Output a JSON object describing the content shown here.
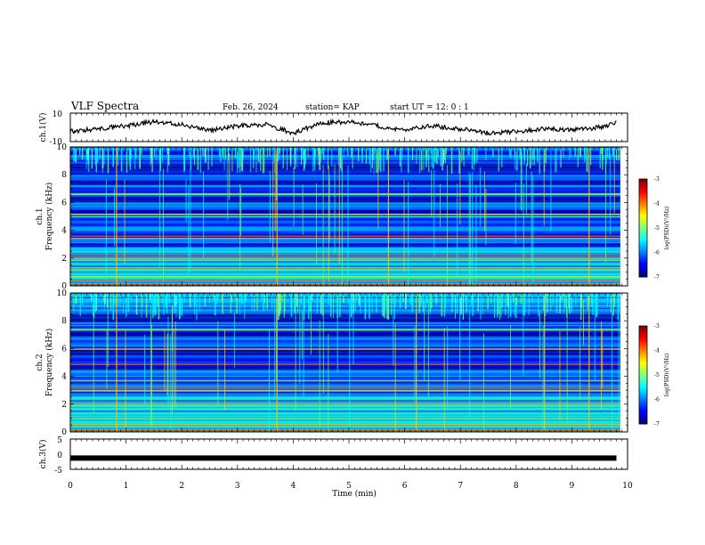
{
  "header": {
    "title": "VLF Spectra",
    "date": "Feb. 26, 2024",
    "station": "station= KAP",
    "start_ut": "start  UT  =   12: 0   : 1"
  },
  "chart_data": [
    {
      "type": "line",
      "panel": "ch1-waveform",
      "ylabel": "ch.1(V)",
      "ylim": [
        -10,
        10
      ],
      "ytick_labels": [
        "10",
        "-10"
      ],
      "x": [
        0,
        0.5,
        1.0,
        1.5,
        2.0,
        2.5,
        3.0,
        3.5,
        4.0,
        4.5,
        5.0,
        5.5,
        6.0,
        6.5,
        7.0,
        7.5,
        8.0,
        8.5,
        9.0,
        9.5,
        9.8
      ],
      "values": [
        -3,
        -1,
        1,
        4,
        2,
        -2,
        1,
        2,
        -4,
        3,
        4,
        1,
        -2,
        1,
        -1,
        -4,
        -3,
        -1,
        -2,
        0,
        3
      ]
    },
    {
      "type": "heatmap",
      "panel": "ch1-spectrogram",
      "ylabel": "ch.1",
      "ylabel2": "Frequency  (kHz)",
      "ylim": [
        0,
        10
      ],
      "ytick_labels": [
        "0",
        "2",
        "4",
        "6",
        "8",
        "10"
      ],
      "colorbar": {
        "label": "log(PSD)(V²/Hz)",
        "range": [
          -7,
          -3
        ],
        "tick_labels": [
          "-3",
          "-4",
          "-5",
          "-6",
          "-7"
        ]
      }
    },
    {
      "type": "heatmap",
      "panel": "ch2-spectrogram",
      "ylabel": "ch.2",
      "ylabel2": "Frequency  (kHz)",
      "ylim": [
        0,
        10
      ],
      "ytick_labels": [
        "0",
        "2",
        "4",
        "6",
        "8",
        "10"
      ],
      "colorbar": {
        "label": "log(PSD)(V²/Hz)",
        "range": [
          -7,
          -3
        ],
        "tick_labels": [
          "-3",
          "-4",
          "-5",
          "-6",
          "-7"
        ]
      }
    },
    {
      "type": "line",
      "panel": "ch3-waveform",
      "ylabel": "ch.3(V)",
      "ylim": [
        -5,
        5
      ],
      "ytick_labels": [
        "5",
        "0",
        "-5"
      ],
      "x": [
        0,
        9.8
      ],
      "values": [
        -1,
        -1
      ]
    }
  ],
  "xaxis": {
    "label": "Time  (min)",
    "range": [
      0,
      10
    ],
    "tick_labels": [
      "0",
      "1",
      "2",
      "3",
      "4",
      "5",
      "6",
      "7",
      "8",
      "9",
      "10"
    ]
  },
  "colors": {
    "jet": [
      "#000080",
      "#0000ff",
      "#0080ff",
      "#00ffff",
      "#80ff80",
      "#ffff00",
      "#ff8000",
      "#ff0000",
      "#800000"
    ]
  }
}
